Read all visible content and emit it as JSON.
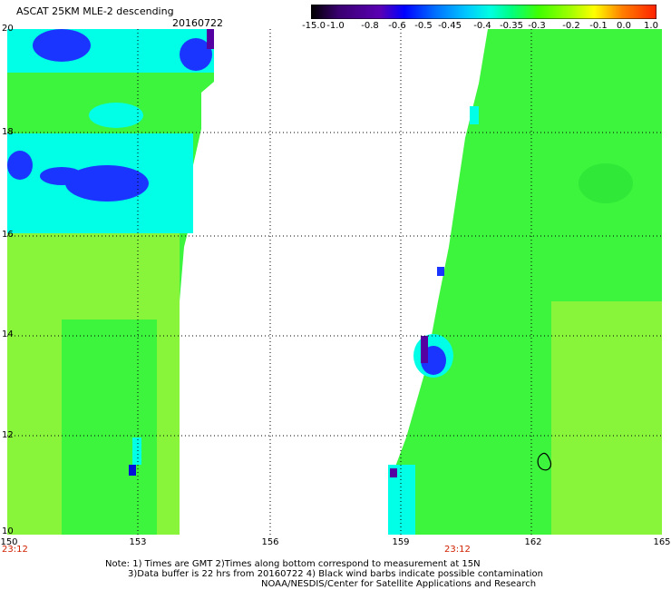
{
  "header": {
    "title": "ASCAT 25KM MLE-2 descending",
    "date": "20160722"
  },
  "colorbar": {
    "labels": [
      "-15.0",
      "-1.0",
      "-0.8",
      "-0.6",
      "-0.5",
      "-0.45",
      "-0.4",
      "-0.35",
      "-0.3",
      "-0.2",
      "-0.1",
      "0.0",
      "1.0"
    ],
    "colors": [
      "#000000",
      "#3a0070",
      "#5a00b4",
      "#0000ff",
      "#0070ff",
      "#00c8ff",
      "#00ffe0",
      "#00ff80",
      "#40ff00",
      "#a0ff00",
      "#ffff00",
      "#ff8000",
      "#ff2000"
    ]
  },
  "map": {
    "lat_labels": [
      "20",
      "18",
      "16",
      "14",
      "12",
      "10"
    ],
    "lon_labels": [
      "150",
      "153",
      "156",
      "159",
      "162",
      "165"
    ],
    "time_labels": [
      "23:12",
      "23:12"
    ],
    "colors": {
      "green": "#3cf53c",
      "lime": "#88f53a",
      "cyan": "#00ffe6",
      "blue": "#1a35ff",
      "darkblue": "#0010d8",
      "purple": "#5500a0",
      "grid": "#000000"
    }
  },
  "notes": {
    "line1": "Note: 1) Times are GMT 2)Times along bottom correspond to measurement at 15N",
    "line2": "3)Data buffer is 22 hrs from 20160722 4) Black wind barbs indicate possible contamination",
    "line3": "NOAA/NESDIS/Center for Satellite Applications and Research"
  }
}
